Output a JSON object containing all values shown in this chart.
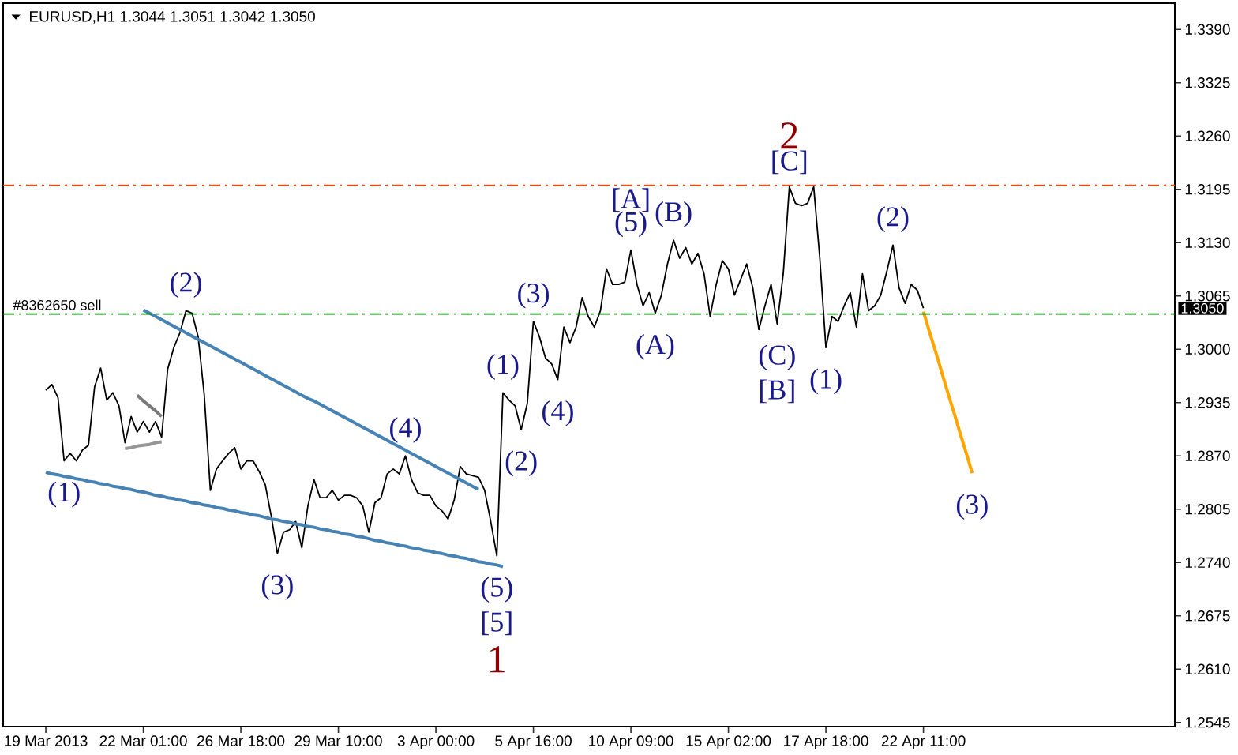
{
  "chart_data": {
    "type": "line",
    "title": "EURUSD,H1 1.3044 1.3051 1.3042 1.3050",
    "categories": [
      "19 Mar 2013",
      null,
      null,
      null,
      null,
      null,
      null,
      null,
      null,
      null,
      null,
      null,
      null,
      null,
      null,
      null,
      "22 Mar 01:00",
      null,
      null,
      null,
      null,
      null,
      null,
      null,
      null,
      null,
      null,
      null,
      null,
      null,
      null,
      null,
      "26 Mar 18:00",
      null,
      null,
      null,
      null,
      null,
      null,
      null,
      null,
      null,
      null,
      null,
      null,
      null,
      null,
      null,
      "29 Mar 10:00",
      null,
      null,
      null,
      null,
      null,
      null,
      null,
      null,
      null,
      null,
      null,
      null,
      null,
      null,
      null,
      "3 Apr 00:00",
      null,
      null,
      null,
      null,
      null,
      null,
      null,
      null,
      null,
      null,
      null,
      null,
      null,
      null,
      null,
      "5 Apr 16:00",
      null,
      null,
      null,
      null,
      null,
      null,
      null,
      null,
      null,
      null,
      null,
      null,
      null,
      null,
      null,
      "10 Apr 09:00",
      null,
      null,
      null,
      null,
      null,
      null,
      null,
      null,
      null,
      null,
      null,
      null,
      null,
      null,
      null,
      "15 Apr 02:00",
      null,
      null,
      null,
      null,
      null,
      null,
      null,
      null,
      null,
      null,
      null,
      null,
      null,
      null,
      null,
      "17 Apr 18:00",
      null,
      null,
      null,
      null,
      null,
      null,
      null,
      null,
      null,
      null,
      null,
      null,
      null,
      null,
      null,
      "22 Apr 11:00",
      null,
      null,
      null,
      null,
      null,
      null,
      null,
      null,
      null,
      null,
      null,
      null,
      null,
      null,
      null,
      null,
      null,
      null,
      null,
      null,
      null,
      null,
      null,
      null,
      null,
      null,
      null,
      null,
      null,
      null,
      null,
      null,
      null,
      null,
      null,
      null,
      null,
      null,
      null,
      null,
      null
    ],
    "ylim": [
      1.254,
      1.3422
    ],
    "yticks": [
      {
        "value": 1.339,
        "label": "1.3390"
      },
      {
        "value": 1.3325,
        "label": "1.3325"
      },
      {
        "value": 1.326,
        "label": "1.3260"
      },
      {
        "value": 1.3195,
        "label": "1.3195"
      },
      {
        "value": 1.313,
        "label": "1.3130"
      },
      {
        "value": 1.3065,
        "label": "1.3065"
      },
      {
        "value": 1.3,
        "label": "1.3000"
      },
      {
        "value": 1.2935,
        "label": "1.2935"
      },
      {
        "value": 1.287,
        "label": "1.2870"
      },
      {
        "value": 1.2805,
        "label": "1.2805"
      },
      {
        "value": 1.274,
        "label": "1.2740"
      },
      {
        "value": 1.2675,
        "label": "1.2675"
      },
      {
        "value": 1.261,
        "label": "1.2610"
      },
      {
        "value": 1.2545,
        "label": "1.2545"
      }
    ],
    "series": [
      {
        "color": "#000000",
        "values": [
          1.295,
          1.2957,
          1.2941,
          1.2864,
          1.2873,
          1.2864,
          1.2877,
          1.2883,
          1.2954,
          1.2977,
          1.2938,
          1.2947,
          1.2931,
          1.2886,
          1.2918,
          1.2899,
          1.2912,
          1.2899,
          1.2912,
          1.2893,
          1.2976,
          1.3002,
          1.302,
          1.3047,
          1.3044,
          1.3015,
          1.2944,
          1.2828,
          1.2854,
          1.2864,
          1.2873,
          1.288,
          1.2854,
          1.2864,
          1.2864,
          1.2851,
          1.2835,
          1.2796,
          1.2751,
          1.2777,
          1.278,
          1.279,
          1.2758,
          1.2809,
          1.2841,
          1.2819,
          1.2819,
          1.2828,
          1.2816,
          1.2822,
          1.2822,
          1.2819,
          1.2809,
          1.2777,
          1.2813,
          1.2819,
          1.2848,
          1.2854,
          1.2848,
          1.287,
          1.2841,
          1.2825,
          1.2822,
          1.2822,
          1.2809,
          1.2803,
          1.2793,
          1.2816,
          1.2857,
          1.2848,
          1.2846,
          1.2844,
          1.2828,
          1.279,
          1.2748,
          1.2947,
          1.2938,
          1.2931,
          1.2902,
          1.2934,
          1.3034,
          1.3015,
          1.2989,
          1.2982,
          1.2963,
          1.3027,
          1.3008,
          1.3027,
          1.3063,
          1.304,
          1.3027,
          1.3047,
          1.3098,
          1.3079,
          1.3079,
          1.3082,
          1.3121,
          1.3079,
          1.3053,
          1.3069,
          1.3044,
          1.3066,
          1.3104,
          1.3133,
          1.3111,
          1.3124,
          1.3104,
          1.3117,
          1.3092,
          1.304,
          1.3079,
          1.3108,
          1.3098,
          1.3066,
          1.3085,
          1.3104,
          1.3075,
          1.3024,
          1.3053,
          1.3079,
          1.3031,
          1.3092,
          1.3198,
          1.3178,
          1.3175,
          1.3178,
          1.3198,
          1.3111,
          1.3002,
          1.304,
          1.3034,
          1.3053,
          1.3069,
          1.3027,
          1.3092,
          1.3047,
          1.3053,
          1.3066,
          1.3095,
          1.3127,
          1.3075,
          1.3056,
          1.3079,
          1.3072,
          1.305,
          null,
          null,
          null,
          null,
          null,
          null,
          null,
          null,
          null,
          null,
          null,
          null,
          null,
          null,
          null,
          null,
          null,
          null,
          null,
          null,
          null,
          null,
          null,
          null,
          null,
          null,
          null,
          null,
          null,
          null,
          null,
          null,
          null,
          null,
          null,
          null,
          null,
          null,
          null,
          null,
          null
        ]
      },
      {
        "color": "#4682b4",
        "values": [
          null,
          null,
          null,
          null,
          null,
          null,
          null,
          null,
          null,
          null,
          null,
          null,
          null,
          null,
          null,
          null,
          1.3048,
          1.3044,
          1.304,
          1.3036,
          1.3032,
          1.3028,
          1.3024,
          1.302,
          1.3016,
          1.3012,
          1.3008,
          1.3004,
          1.3,
          1.2996,
          1.2992,
          1.2988,
          1.2984,
          1.298,
          1.2976,
          1.2972,
          1.2968,
          1.2964,
          1.296,
          1.2956,
          1.2952,
          1.2948,
          1.2944,
          1.294,
          1.2937,
          1.2933,
          1.2929,
          1.2925,
          1.2921,
          1.2917,
          1.2913,
          1.2909,
          1.2905,
          1.2901,
          1.2897,
          1.2893,
          1.2889,
          1.2885,
          1.2881,
          1.2877,
          1.2873,
          1.2869,
          1.2865,
          1.2861,
          1.2857,
          1.2853,
          1.2849,
          1.2845,
          1.2841,
          1.2837,
          1.2833,
          1.2829,
          null,
          null,
          null,
          null,
          null,
          null,
          null,
          null,
          null,
          null,
          null,
          null,
          null,
          null,
          null,
          null,
          null,
          null,
          null,
          null,
          null,
          null,
          null,
          null,
          null,
          null,
          null,
          null,
          null,
          null,
          null,
          null,
          null,
          null,
          null,
          null,
          null,
          null,
          null,
          null,
          null,
          null,
          null,
          null,
          null,
          null,
          null,
          null,
          null,
          null,
          null,
          null,
          null,
          null,
          null,
          null,
          null,
          null,
          null,
          null,
          null,
          null,
          null,
          null,
          null,
          null,
          null,
          null,
          null,
          null,
          null,
          null,
          null,
          null,
          null,
          null,
          null,
          null,
          null,
          null,
          null,
          null,
          null,
          null,
          null,
          null,
          null,
          null,
          null,
          null,
          null,
          null,
          null,
          null,
          null,
          null,
          null,
          null,
          null,
          null,
          null,
          null,
          null,
          null,
          null,
          null,
          null,
          null,
          null,
          null,
          null,
          null,
          null,
          null
        ]
      },
      {
        "color": "#4682b4",
        "values": [
          1.285,
          1.2848,
          1.2847,
          1.2845,
          1.2844,
          1.2842,
          1.2841,
          1.2839,
          1.2838,
          1.2836,
          1.2835,
          1.2833,
          1.2832,
          1.283,
          1.2829,
          1.2827,
          1.2826,
          1.2824,
          1.2822,
          1.2821,
          1.2819,
          1.2818,
          1.2816,
          1.2815,
          1.2813,
          1.2812,
          1.281,
          1.2809,
          1.2807,
          1.2806,
          1.2804,
          1.2803,
          1.2801,
          1.28,
          1.2798,
          1.2797,
          1.2795,
          1.2793,
          1.2792,
          1.279,
          1.2789,
          1.2787,
          1.2786,
          1.2784,
          1.2783,
          1.2781,
          1.278,
          1.2778,
          1.2777,
          1.2775,
          1.2774,
          1.2772,
          1.2771,
          1.2769,
          1.2767,
          1.2766,
          1.2764,
          1.2763,
          1.2761,
          1.276,
          1.2758,
          1.2757,
          1.2755,
          1.2754,
          1.2752,
          1.2751,
          1.2749,
          1.2748,
          1.2746,
          1.2745,
          1.2743,
          1.2741,
          1.274,
          1.2738,
          1.2737,
          1.2735,
          null,
          null,
          null,
          null,
          null,
          null,
          null,
          null,
          null,
          null,
          null,
          null,
          null,
          null,
          null,
          null,
          null,
          null,
          null,
          null,
          null,
          null,
          null,
          null,
          null,
          null,
          null,
          null,
          null,
          null,
          null,
          null,
          null,
          null,
          null,
          null,
          null,
          null,
          null,
          null,
          null,
          null,
          null,
          null,
          null,
          null,
          null,
          null,
          null,
          null,
          null,
          null,
          null,
          null,
          null,
          null,
          null,
          null,
          null,
          null,
          null,
          null,
          null,
          null,
          null,
          null,
          null,
          null,
          null,
          null,
          null,
          null,
          null,
          null,
          null,
          null,
          null,
          null,
          null,
          null,
          null,
          null,
          null,
          null,
          null,
          null,
          null,
          null,
          null,
          null,
          null,
          null,
          null,
          null,
          null,
          null,
          null,
          null,
          null,
          null,
          null,
          null,
          null,
          null,
          null,
          null,
          null,
          null,
          null,
          null
        ]
      },
      {
        "color": "#7a7a7a",
        "values": [
          null,
          null,
          null,
          null,
          null,
          null,
          null,
          null,
          null,
          null,
          null,
          null,
          null,
          null,
          null,
          1.2944,
          1.2937,
          1.2931,
          1.2925,
          1.2918,
          null,
          null,
          null,
          null,
          null,
          null,
          null,
          null,
          null,
          null,
          null,
          null,
          null,
          null,
          null,
          null,
          null,
          null,
          null,
          null,
          null,
          null,
          null,
          null,
          null,
          null,
          null,
          null,
          null,
          null,
          null,
          null,
          null,
          null,
          null,
          null,
          null,
          null,
          null,
          null,
          null,
          null,
          null,
          null,
          null,
          null,
          null,
          null,
          null,
          null,
          null,
          null,
          null,
          null,
          null,
          null,
          null,
          null,
          null,
          null,
          null,
          null,
          null,
          null,
          null,
          null,
          null,
          null,
          null,
          null,
          null,
          null,
          null,
          null,
          null,
          null,
          null,
          null,
          null,
          null,
          null,
          null,
          null,
          null,
          null,
          null,
          null,
          null,
          null,
          null,
          null,
          null,
          null,
          null,
          null,
          null,
          null,
          null,
          null,
          null,
          null,
          null,
          null,
          null,
          null,
          null,
          null,
          null,
          null,
          null,
          null,
          null,
          null,
          null,
          null,
          null,
          null,
          null,
          null,
          null,
          null,
          null,
          null,
          null,
          null,
          null,
          null,
          null,
          null,
          null,
          null,
          null,
          null,
          null,
          null,
          null,
          null,
          null,
          null,
          null,
          null,
          null,
          null,
          null,
          null,
          null,
          null,
          null,
          null,
          null,
          null,
          null,
          null,
          null,
          null,
          null,
          null,
          null,
          null,
          null,
          null,
          null,
          null,
          null,
          null,
          null
        ]
      },
      {
        "color": "#969696",
        "values": [
          null,
          null,
          null,
          null,
          null,
          null,
          null,
          null,
          null,
          null,
          null,
          null,
          null,
          1.2879,
          1.288,
          1.2882,
          1.2883,
          1.2884,
          1.2886,
          1.2887,
          null,
          null,
          null,
          null,
          null,
          null,
          null,
          null,
          null,
          null,
          null,
          null,
          null,
          null,
          null,
          null,
          null,
          null,
          null,
          null,
          null,
          null,
          null,
          null,
          null,
          null,
          null,
          null,
          null,
          null,
          null,
          null,
          null,
          null,
          null,
          null,
          null,
          null,
          null,
          null,
          null,
          null,
          null,
          null,
          null,
          null,
          null,
          null,
          null,
          null,
          null,
          null,
          null,
          null,
          null,
          null,
          null,
          null,
          null,
          null,
          null,
          null,
          null,
          null,
          null,
          null,
          null,
          null,
          null,
          null,
          null,
          null,
          null,
          null,
          null,
          null,
          null,
          null,
          null,
          null,
          null,
          null,
          null,
          null,
          null,
          null,
          null,
          null,
          null,
          null,
          null,
          null,
          null,
          null,
          null,
          null,
          null,
          null,
          null,
          null,
          null,
          null,
          null,
          null,
          null,
          null,
          null,
          null,
          null,
          null,
          null,
          null,
          null,
          null,
          null,
          null,
          null,
          null,
          null,
          null,
          null,
          null,
          null,
          null,
          null,
          null,
          null,
          null,
          null,
          null,
          null,
          null,
          null,
          null,
          null,
          null,
          null,
          null,
          null,
          null,
          null,
          null,
          null,
          null,
          null,
          null,
          null,
          null,
          null,
          null,
          null,
          null,
          null,
          null,
          null,
          null,
          null,
          null,
          null,
          null,
          null,
          null,
          null,
          null,
          null,
          null
        ]
      },
      {
        "color": "#ffa500",
        "values": [
          null,
          null,
          null,
          null,
          null,
          null,
          null,
          null,
          null,
          null,
          null,
          null,
          null,
          null,
          null,
          null,
          null,
          null,
          null,
          null,
          null,
          null,
          null,
          null,
          null,
          null,
          null,
          null,
          null,
          null,
          null,
          null,
          null,
          null,
          null,
          null,
          null,
          null,
          null,
          null,
          null,
          null,
          null,
          null,
          null,
          null,
          null,
          null,
          null,
          null,
          null,
          null,
          null,
          null,
          null,
          null,
          null,
          null,
          null,
          null,
          null,
          null,
          null,
          null,
          null,
          null,
          null,
          null,
          null,
          null,
          null,
          null,
          null,
          null,
          null,
          null,
          null,
          null,
          null,
          null,
          null,
          null,
          null,
          null,
          null,
          null,
          null,
          null,
          null,
          null,
          null,
          null,
          null,
          null,
          null,
          null,
          null,
          null,
          null,
          null,
          null,
          null,
          null,
          null,
          null,
          null,
          null,
          null,
          null,
          null,
          null,
          null,
          null,
          null,
          null,
          null,
          null,
          null,
          null,
          null,
          null,
          null,
          null,
          null,
          null,
          null,
          null,
          null,
          null,
          null,
          null,
          null,
          null,
          null,
          null,
          null,
          null,
          null,
          null,
          null,
          null,
          null,
          null,
          null,
          1.3046,
          1.3021,
          1.2997,
          1.2972,
          1.2947,
          1.2923,
          1.2898,
          1.2874,
          1.2849,
          null,
          null,
          null,
          null,
          null,
          null,
          null,
          null,
          null,
          null,
          null,
          null,
          null,
          null,
          null,
          null,
          null,
          null,
          null,
          null,
          null,
          null,
          null,
          null,
          null,
          null,
          null,
          null,
          null,
          null,
          null,
          null,
          null
        ]
      }
    ],
    "ref_lines": [
      {
        "axis": "y",
        "value": 1.32,
        "color": "#ff4500",
        "line_style": "dashdot"
      },
      {
        "axis": "y",
        "value": 1.3043,
        "label": "#8362650 sell",
        "color": "#008000",
        "line_style": "dashdot"
      }
    ],
    "annotations": [
      {
        "text": "(1)",
        "y": 1.2864
      },
      {
        "text": "(2)",
        "y": 1.3047
      },
      {
        "text": "(3)",
        "y": 1.2751
      },
      {
        "text": "(4)",
        "y": 1.287
      },
      {
        "text": "(5)",
        "y": 1.2748
      },
      {
        "text": "[5]",
        "y": 1.2748
      },
      {
        "text": "1",
        "y": 1.2748
      },
      {
        "text": "(1)",
        "y": 1.2947
      },
      {
        "text": "(2)",
        "y": 1.2902
      },
      {
        "text": "(3)",
        "y": 1.3034
      },
      {
        "text": "(4)",
        "y": 1.2963
      },
      {
        "text": "(5)",
        "y": 1.3121
      },
      {
        "text": "[A]",
        "y": 1.3121
      },
      {
        "text": "(A)",
        "y": 1.3044
      },
      {
        "text": "(B)",
        "y": 1.3133
      },
      {
        "text": "(C)",
        "y": 1.3031
      },
      {
        "text": "[B]",
        "y": 1.3031
      },
      {
        "text": "[C]",
        "y": 1.3198
      },
      {
        "text": "2",
        "y": 1.3198
      },
      {
        "text": "(1)",
        "y": 1.3002
      },
      {
        "text": "(2)",
        "y": 1.3127
      },
      {
        "text": "(3)",
        "y": 1.2849
      },
      "1.3050"
    ]
  }
}
